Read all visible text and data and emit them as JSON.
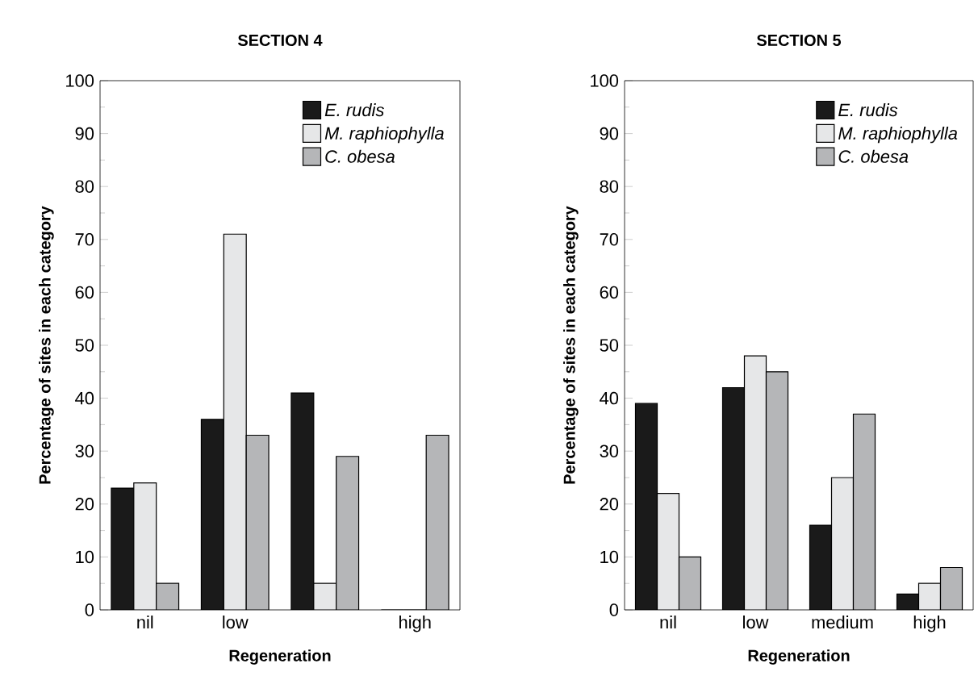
{
  "chart_data": [
    {
      "type": "bar",
      "title": "SECTION 4",
      "xlabel": "Regeneration",
      "ylabel": "Percentage of sites in each category",
      "categories": [
        "nil",
        "low",
        null,
        "high"
      ],
      "ylim": [
        0,
        100
      ],
      "yticks": [
        0,
        10,
        20,
        30,
        40,
        50,
        60,
        70,
        80,
        90,
        100
      ],
      "legend": "top right",
      "series": [
        {
          "name": "E. rudis",
          "color": "#1a1a1a",
          "values": [
            23,
            36,
            41,
            0
          ]
        },
        {
          "name": "M. raphiophylla",
          "color": "#e6e7e8",
          "values": [
            24,
            71,
            5,
            0
          ]
        },
        {
          "name": "C. obesa",
          "color": "#b5b6b8",
          "values": [
            5,
            33,
            29,
            33
          ]
        }
      ]
    },
    {
      "type": "bar",
      "title": "SECTION 5",
      "xlabel": "Regeneration",
      "ylabel": "Percentage of sites in each category",
      "categories": [
        "nil",
        "low",
        "medium",
        "high"
      ],
      "ylim": [
        0,
        100
      ],
      "yticks": [
        0,
        10,
        20,
        30,
        40,
        50,
        60,
        70,
        80,
        90,
        100
      ],
      "legend": "top right",
      "series": [
        {
          "name": "E. rudis",
          "color": "#1a1a1a",
          "values": [
            39,
            42,
            16,
            3
          ]
        },
        {
          "name": "M. raphiophylla",
          "color": "#e6e7e8",
          "values": [
            22,
            48,
            25,
            5
          ]
        },
        {
          "name": "C. obesa",
          "color": "#b5b6b8",
          "values": [
            10,
            45,
            37,
            8
          ]
        }
      ]
    }
  ]
}
